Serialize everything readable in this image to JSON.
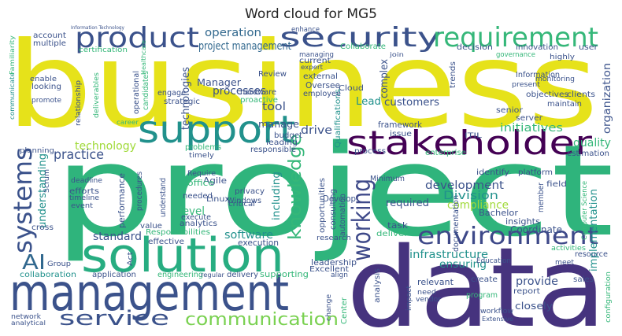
{
  "chart_data": {
    "type": "wordcloud",
    "title": "Word cloud for MG5",
    "words": [
      {
        "text": "business",
        "color": "#e6e21a"
      },
      {
        "text": "project",
        "color": "#2fb47c"
      },
      {
        "text": "data",
        "color": "#46337e"
      },
      {
        "text": "management",
        "color": "#3b528b"
      },
      {
        "text": "solution",
        "color": "#27ad81"
      },
      {
        "text": "support",
        "color": "#21918c"
      },
      {
        "text": "stakeholder",
        "color": "#440154"
      },
      {
        "text": "security",
        "color": "#3b528b"
      },
      {
        "text": "requirement",
        "color": "#35b779"
      },
      {
        "text": "product",
        "color": "#3b528b"
      },
      {
        "text": "environment",
        "color": "#3e4989"
      },
      {
        "text": "systems",
        "color": "#3b528b"
      },
      {
        "text": "service",
        "color": "#3b528b"
      },
      {
        "text": "communication",
        "color": "#7ad151"
      },
      {
        "text": "working",
        "color": "#3e4989"
      },
      {
        "text": "knowledge",
        "color": "#35b779"
      },
      {
        "text": "AI",
        "color": "#31688e"
      },
      {
        "text": "development",
        "color": "#3b528b"
      },
      {
        "text": "Division",
        "color": "#21918c"
      },
      {
        "text": "compliance",
        "color": "#a0da39"
      },
      {
        "text": "infrastructure",
        "color": "#21918c"
      },
      {
        "text": "ensuring",
        "color": "#21918c"
      },
      {
        "text": "initiatives",
        "color": "#35b779"
      },
      {
        "text": "quality",
        "color": "#35b779"
      },
      {
        "text": "operation",
        "color": "#31688e"
      },
      {
        "text": "project management",
        "color": "#31688e"
      },
      {
        "text": "processes",
        "color": "#3b528b"
      },
      {
        "text": "Manager",
        "color": "#3b528b"
      },
      {
        "text": "technologies",
        "color": "#3b528b"
      },
      {
        "text": "practice",
        "color": "#3b528b"
      },
      {
        "text": "technology",
        "color": "#a0da39"
      },
      {
        "text": "standard",
        "color": "#3b528b"
      },
      {
        "text": "software",
        "color": "#21918c"
      },
      {
        "text": "level",
        "color": "#35b779"
      },
      {
        "text": "drive",
        "color": "#3b528b"
      },
      {
        "text": "tool",
        "color": "#3b528b"
      },
      {
        "text": "customers",
        "color": "#3b528b"
      },
      {
        "text": "Lead",
        "color": "#21918c"
      },
      {
        "text": "complex",
        "color": "#3b528b"
      },
      {
        "text": "manage",
        "color": "#3b528b"
      },
      {
        "text": "required",
        "color": "#3b528b"
      },
      {
        "text": "understanding",
        "color": "#21918c"
      },
      {
        "text": "organization",
        "color": "#3b528b"
      },
      {
        "text": "implementation",
        "color": "#21918c"
      },
      {
        "text": "provide",
        "color": "#3b528b"
      },
      {
        "text": "closely",
        "color": "#3b528b"
      },
      {
        "text": "Coordinate",
        "color": "#3b528b"
      },
      {
        "text": "performance",
        "color": "#3b528b"
      },
      {
        "text": "Agile",
        "color": "#3b528b"
      },
      {
        "text": "Linux",
        "color": "#3b528b"
      },
      {
        "text": "Windows",
        "color": "#3b528b"
      },
      {
        "text": "privacy",
        "color": "#3b528b"
      },
      {
        "text": "office",
        "color": "#35b779"
      },
      {
        "text": "needed",
        "color": "#3b528b"
      },
      {
        "text": "including",
        "color": "#21918c"
      },
      {
        "text": "execution",
        "color": "#3b528b"
      },
      {
        "text": "leadership",
        "color": "#3b528b"
      },
      {
        "text": "Excellent",
        "color": "#3b528b"
      },
      {
        "text": "supporting",
        "color": "#35b779"
      },
      {
        "text": "delivery",
        "color": "#3b528b"
      },
      {
        "text": "engineering",
        "color": "#35b779"
      },
      {
        "text": "application",
        "color": "#3b528b"
      },
      {
        "text": "collaboration",
        "color": "#21918c"
      },
      {
        "text": "Group",
        "color": "#3b528b"
      },
      {
        "text": "Responsibilities",
        "color": "#35b779"
      },
      {
        "text": "effective",
        "color": "#3b528b"
      },
      {
        "text": "analytics",
        "color": "#3b528b"
      },
      {
        "text": "Develop",
        "color": "#3b528b"
      },
      {
        "text": "Minimum",
        "color": "#3b528b"
      },
      {
        "text": "opportunities",
        "color": "#3b528b"
      },
      {
        "text": "automation",
        "color": "#3b528b"
      },
      {
        "text": "consulting",
        "color": "#3b528b"
      },
      {
        "text": "research",
        "color": "#3b528b"
      },
      {
        "text": "task",
        "color": "#3b528b"
      },
      {
        "text": "deliver",
        "color": "#35b779"
      },
      {
        "text": "responsible",
        "color": "#3b528b"
      },
      {
        "text": "budget",
        "color": "#3b528b"
      },
      {
        "text": "leading",
        "color": "#3b528b"
      },
      {
        "text": "problems",
        "color": "#35b779"
      },
      {
        "text": "timely",
        "color": "#3b528b"
      },
      {
        "text": "framework",
        "color": "#3b528b"
      },
      {
        "text": "process",
        "color": "#3b528b"
      },
      {
        "text": "issue",
        "color": "#3b528b"
      },
      {
        "text": "Qualifications",
        "color": "#21918c"
      },
      {
        "text": "Bachelor",
        "color": "#3b528b"
      },
      {
        "text": "insights",
        "color": "#3b528b"
      },
      {
        "text": "platform",
        "color": "#3b528b"
      },
      {
        "text": "identify",
        "color": "#3b528b"
      },
      {
        "text": "field",
        "color": "#3b528b"
      },
      {
        "text": "estimation",
        "color": "#3b528b"
      },
      {
        "text": "member",
        "color": "#3b528b"
      },
      {
        "text": "Computer Science",
        "color": "#35b779"
      },
      {
        "text": "documentation",
        "color": "#3b528b"
      },
      {
        "text": "enterprise",
        "color": "#35b779"
      },
      {
        "text": "server",
        "color": "#3b528b"
      },
      {
        "text": "senior",
        "color": "#3b528b"
      },
      {
        "text": "objectives",
        "color": "#3b528b"
      },
      {
        "text": "maintain",
        "color": "#3b528b"
      },
      {
        "text": "clients",
        "color": "#3b528b"
      },
      {
        "text": "monitoring",
        "color": "#3b528b"
      },
      {
        "text": "Information",
        "color": "#3b528b"
      },
      {
        "text": "highly",
        "color": "#3b528b"
      },
      {
        "text": "innovation",
        "color": "#3b528b"
      },
      {
        "text": "user",
        "color": "#3b528b"
      },
      {
        "text": "decision",
        "color": "#3b528b"
      },
      {
        "text": "governance",
        "color": "#35b779"
      },
      {
        "text": "trends",
        "color": "#3b528b"
      },
      {
        "text": "Cloud",
        "color": "#3b528b"
      },
      {
        "text": "external",
        "color": "#3b528b"
      },
      {
        "text": "Oversee",
        "color": "#3b528b"
      },
      {
        "text": "employee",
        "color": "#3b528b"
      },
      {
        "text": "proactive",
        "color": "#35b779"
      },
      {
        "text": "hardware",
        "color": "#3b528b"
      },
      {
        "text": "Review",
        "color": "#3b528b"
      },
      {
        "text": "engage",
        "color": "#3b528b"
      },
      {
        "text": "strategic",
        "color": "#3b528b"
      },
      {
        "text": "current",
        "color": "#3b528b"
      },
      {
        "text": "managing",
        "color": "#3b528b"
      },
      {
        "text": "account",
        "color": "#3b528b"
      },
      {
        "text": "multiple",
        "color": "#3b528b"
      },
      {
        "text": "certification",
        "color": "#35b779"
      },
      {
        "text": "enable",
        "color": "#3b528b"
      },
      {
        "text": "looking",
        "color": "#3b528b"
      },
      {
        "text": "promote",
        "color": "#3b528b"
      },
      {
        "text": "relationship",
        "color": "#3b528b"
      },
      {
        "text": "deliverables",
        "color": "#35b779"
      },
      {
        "text": "planning",
        "color": "#3b528b"
      },
      {
        "text": "deadline",
        "color": "#3b528b"
      },
      {
        "text": "efforts",
        "color": "#3b528b"
      },
      {
        "text": "timeline",
        "color": "#3b528b"
      },
      {
        "text": "event",
        "color": "#3b528b"
      },
      {
        "text": "Scrum",
        "color": "#3b528b"
      },
      {
        "text": "cross",
        "color": "#3b528b"
      },
      {
        "text": "value",
        "color": "#3b528b"
      },
      {
        "text": "procedures",
        "color": "#3b528b"
      },
      {
        "text": "execute",
        "color": "#3b528b"
      },
      {
        "text": "understand",
        "color": "#3b528b"
      },
      {
        "text": "critical",
        "color": "#3b528b"
      },
      {
        "text": "Require",
        "color": "#3b528b"
      },
      {
        "text": "candidates",
        "color": "#35b779"
      },
      {
        "text": "operational",
        "color": "#3b528b"
      },
      {
        "text": "ITIL",
        "color": "#3b528b"
      },
      {
        "text": "create",
        "color": "#3b528b"
      },
      {
        "text": "program",
        "color": "#35b779"
      },
      {
        "text": "report",
        "color": "#3b528b"
      },
      {
        "text": "sales",
        "color": "#3b528b"
      },
      {
        "text": "resource",
        "color": "#3b528b"
      },
      {
        "text": "workflow",
        "color": "#3b528b"
      },
      {
        "text": "Extensive",
        "color": "#3b528b"
      },
      {
        "text": "configuration",
        "color": "#35b779"
      },
      {
        "text": "relevant",
        "color": "#3b528b"
      },
      {
        "text": "impact",
        "color": "#3b528b"
      },
      {
        "text": "analysis",
        "color": "#3b528b"
      },
      {
        "text": "Center",
        "color": "#35b779"
      },
      {
        "text": "change",
        "color": "#3b528b"
      },
      {
        "text": "network",
        "color": "#3b528b"
      },
      {
        "text": "analytical",
        "color": "#3b528b"
      },
      {
        "text": "Education",
        "color": "#3b528b"
      },
      {
        "text": "Act",
        "color": "#3b528b"
      },
      {
        "text": "communicate",
        "color": "#21918c"
      },
      {
        "text": "Information Technology",
        "color": "#3b528b"
      },
      {
        "text": "enhance",
        "color": "#3b528b"
      },
      {
        "text": "expert",
        "color": "#3b528b"
      },
      {
        "text": "join",
        "color": "#3b528b"
      },
      {
        "text": "Collaborate",
        "color": "#35b779"
      },
      {
        "text": "present",
        "color": "#3b528b"
      },
      {
        "text": "career",
        "color": "#35b779"
      },
      {
        "text": "Familiarity",
        "color": "#35b779"
      },
      {
        "text": "Healthcare",
        "color": "#35b779"
      },
      {
        "text": "activities",
        "color": "#35b779"
      },
      {
        "text": "meet",
        "color": "#3b528b"
      },
      {
        "text": "align",
        "color": "#3b528b"
      },
      {
        "text": "need",
        "color": "#3b528b"
      },
      {
        "text": "vendor",
        "color": "#3b528b"
      },
      {
        "text": "regular",
        "color": "#3b528b"
      }
    ]
  }
}
